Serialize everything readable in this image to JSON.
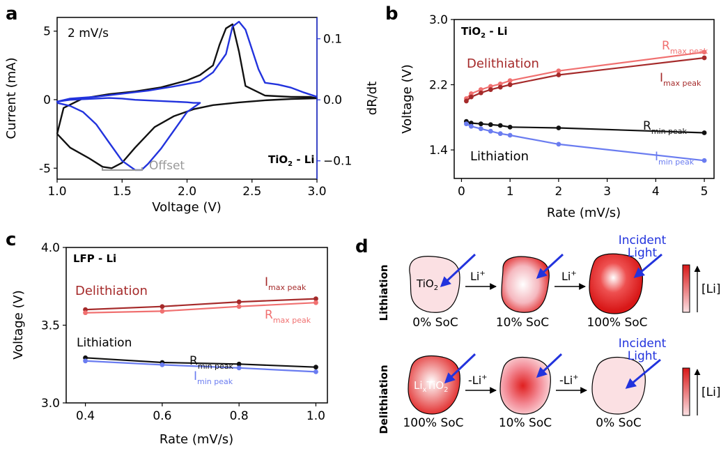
{
  "panels": {
    "a": "a",
    "b": "b",
    "c": "c",
    "d": "d"
  },
  "colors": {
    "black": "#111111",
    "blue": "#2233dd",
    "dark_red": "#a52a2a",
    "light_red": "#f07070",
    "light_blue": "#6a7cf0",
    "gray": "#999999",
    "particle_red": "#e02020",
    "particle_pink": "#fbe0e3"
  },
  "chart_data": [
    {
      "panel": "a",
      "type": "line",
      "xlabel": "Voltage (V)",
      "ylabel": "Current (mA)",
      "y2label": "dR/dt",
      "xlim": [
        1.0,
        3.0
      ],
      "ylim": [
        -5.8,
        6.0
      ],
      "y2lim": [
        -0.13,
        0.135
      ],
      "xticks": [
        "1.0",
        "1.5",
        "2.0",
        "2.5",
        "3.0"
      ],
      "yticks": [
        "5",
        "0",
        "-5"
      ],
      "y2ticks": [
        "0.1",
        "0.0",
        "−0.1"
      ],
      "labels": {
        "scan_rate": "2 mV/s",
        "system_main": "TiO",
        "system_sub": "2",
        "system_rest": " - Li",
        "offset": "Offset"
      },
      "series": [
        {
          "axis": "left",
          "color": "#111111",
          "x": [
            1.0,
            1.1,
            1.25,
            1.35,
            1.42,
            1.5,
            1.6,
            1.75,
            1.9,
            2.05,
            2.2,
            2.4,
            2.6,
            2.8,
            3.0,
            2.95,
            2.8,
            2.6,
            2.45,
            2.4,
            2.35,
            2.3,
            2.25,
            2.2,
            2.1,
            2.0,
            1.8,
            1.6,
            1.4,
            1.2,
            1.05,
            1.0
          ],
          "y": [
            -2.5,
            -3.5,
            -4.3,
            -4.9,
            -5.0,
            -4.6,
            -3.5,
            -2.0,
            -1.2,
            -0.7,
            -0.4,
            -0.2,
            -0.05,
            0.05,
            0.1,
            0.2,
            0.2,
            0.3,
            1.0,
            3.5,
            5.5,
            5.2,
            4.0,
            2.5,
            1.8,
            1.4,
            0.9,
            0.6,
            0.4,
            0.1,
            -0.6,
            -2.5
          ]
        },
        {
          "axis": "right",
          "color": "#2233dd",
          "x": [
            1.0,
            1.1,
            1.2,
            1.3,
            1.4,
            1.5,
            1.6,
            1.65,
            1.7,
            1.8,
            1.9,
            2.0,
            2.1,
            2.05,
            2.0,
            1.9,
            1.8,
            1.7,
            1.6,
            1.5,
            1.4,
            1.3,
            1.2,
            1.1,
            1.0,
            1.1,
            1.3,
            1.5,
            1.7,
            1.9,
            2.1,
            2.2,
            2.3,
            2.35,
            2.4,
            2.45,
            2.55,
            2.6,
            2.7,
            2.8,
            2.9,
            3.0
          ],
          "y": [
            -0.005,
            -0.01,
            -0.02,
            -0.04,
            -0.07,
            -0.1,
            -0.115,
            -0.115,
            -0.105,
            -0.08,
            -0.05,
            -0.02,
            -0.005,
            -0.005,
            -0.004,
            -0.003,
            -0.002,
            -0.001,
            0.0,
            0.002,
            0.003,
            0.002,
            0.001,
            0.0,
            -0.003,
            0.002,
            0.005,
            0.01,
            0.015,
            0.022,
            0.03,
            0.045,
            0.075,
            0.12,
            0.128,
            0.115,
            0.05,
            0.028,
            0.025,
            0.02,
            0.012,
            0.005
          ]
        }
      ]
    },
    {
      "panel": "b",
      "type": "line",
      "xlabel": "Rate (mV/s)",
      "ylabel": "Voltage (V)",
      "xlim": [
        -0.15,
        5.2
      ],
      "ylim": [
        1.05,
        3.0
      ],
      "xticks": [
        "0",
        "1",
        "2",
        "3",
        "4",
        "5"
      ],
      "yticks": [
        "3.0",
        "2.2",
        "1.4"
      ],
      "labels": {
        "system_main": "TiO",
        "system_sub": "2",
        "system_rest": " - Li",
        "delith": "Delithiation",
        "lith": "Lithiation"
      },
      "x": [
        0.1,
        0.2,
        0.4,
        0.6,
        0.8,
        1.0,
        2.0,
        5.0
      ],
      "series": [
        {
          "name_main": "R",
          "name_sub": "max peak",
          "color": "#f07070",
          "values": [
            2.03,
            2.09,
            2.14,
            2.18,
            2.21,
            2.25,
            2.37,
            2.6
          ]
        },
        {
          "name_main": "I",
          "name_sub": "max peak",
          "color": "#a52a2a",
          "values": [
            2.0,
            2.05,
            2.1,
            2.14,
            2.17,
            2.2,
            2.32,
            2.53
          ]
        },
        {
          "name_main": "R",
          "name_sub": "min peak",
          "color": "#111111",
          "values": [
            1.75,
            1.73,
            1.72,
            1.71,
            1.7,
            1.68,
            1.67,
            1.61
          ]
        },
        {
          "name_main": "I",
          "name_sub": "min peak",
          "color": "#6a7cf0",
          "values": [
            1.72,
            1.69,
            1.66,
            1.63,
            1.6,
            1.58,
            1.47,
            1.27
          ]
        }
      ]
    },
    {
      "panel": "c",
      "type": "line",
      "xlabel": "Rate (mV/s)",
      "ylabel": "Voltage (V)",
      "xlim": [
        0.35,
        1.03
      ],
      "ylim": [
        3.0,
        4.0
      ],
      "xticks": [
        "0.4",
        "0.6",
        "0.8",
        "1.0"
      ],
      "yticks": [
        "4.0",
        "3.5",
        "3.0"
      ],
      "labels": {
        "system": "LFP - Li",
        "delith": "Delithiation",
        "lith": "Lithiation"
      },
      "x": [
        0.4,
        0.6,
        0.8,
        1.0
      ],
      "series": [
        {
          "name_main": "I",
          "name_sub": "max peak",
          "color": "#a52a2a",
          "values": [
            3.6,
            3.62,
            3.65,
            3.67
          ]
        },
        {
          "name_main": "R",
          "name_sub": "max peak",
          "color": "#f07070",
          "values": [
            3.58,
            3.59,
            3.62,
            3.645
          ]
        },
        {
          "name_main": "R",
          "name_sub": "min peak",
          "color": "#111111",
          "values": [
            3.29,
            3.26,
            3.25,
            3.23
          ]
        },
        {
          "name_main": "I",
          "name_sub": "min peak",
          "color": "#6a7cf0",
          "values": [
            3.27,
            3.245,
            3.225,
            3.2
          ]
        }
      ]
    }
  ],
  "schematic": {
    "row_labels": [
      "Lithiation",
      "Delithiation"
    ],
    "incident_light": [
      "Incident",
      "Light"
    ],
    "scale_label": "[Li]",
    "lith": {
      "particle_label_main": "TiO",
      "particle_label_sub": "2",
      "arrow_main": "Li",
      "arrow_sup": "+",
      "captions": [
        "0% SoC",
        "10% SoC",
        "100% SoC"
      ]
    },
    "delith": {
      "particle_label_pre": "Li",
      "particle_label_x": "x",
      "particle_label_main": "TiO",
      "particle_label_sub": "2",
      "arrow_main": "-Li",
      "arrow_sup": "+",
      "captions": [
        "100% SoC",
        "10% SoC",
        "0% SoC"
      ]
    }
  }
}
